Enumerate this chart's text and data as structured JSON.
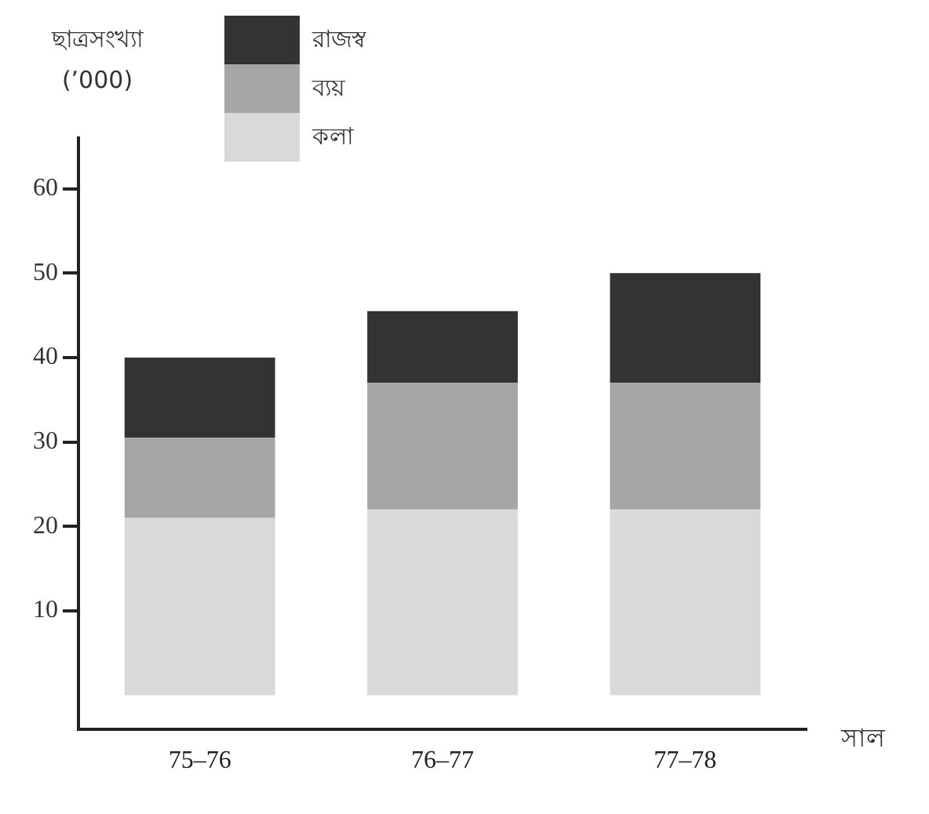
{
  "chart_data": {
    "type": "bar",
    "stacked": true,
    "ylabel": "ছাত্রসংখ্যা (’000)",
    "xlabel": "সাল",
    "categories": [
      "75–76",
      "76–77",
      "77–78"
    ],
    "series": [
      {
        "name": "কলা",
        "color": "#d9d9d9",
        "values": [
          21,
          22,
          22
        ]
      },
      {
        "name": "ব্যয়",
        "color": "#a6a6a6",
        "values": [
          9.5,
          15,
          15
        ]
      },
      {
        "name": "রাজস্ব",
        "color": "#333333",
        "values": [
          9.5,
          8.5,
          13
        ]
      }
    ],
    "ylim": [
      -4,
      66
    ],
    "yticks": [
      10,
      20,
      30,
      40,
      50,
      60
    ],
    "grid": false,
    "legend": "top"
  }
}
